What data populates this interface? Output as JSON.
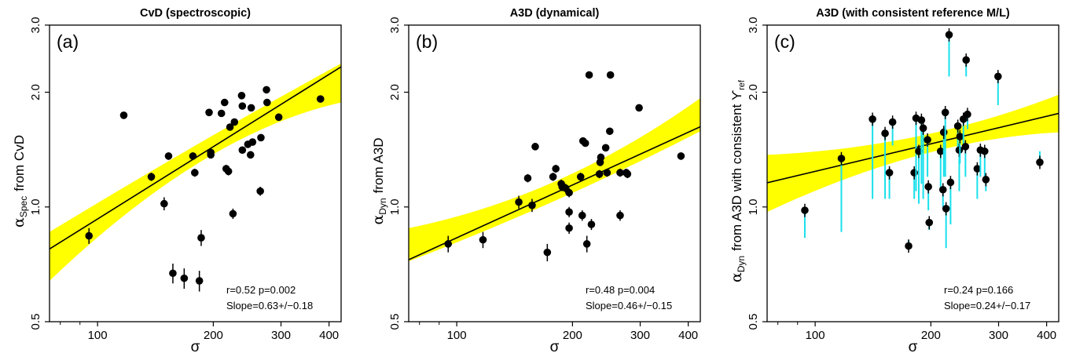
{
  "chart_data": [
    {
      "type": "scatter",
      "title": "CvD (spectroscopic)",
      "panel_label": "(a)",
      "xlabel": "σ",
      "ylabel_symbol": "α",
      "ylabel_sub": "Spec",
      "ylabel_suffix": "from CvD",
      "x_scale": "log",
      "y_scale": "log",
      "xlim": [
        75,
        430
      ],
      "ylim": [
        0.5,
        3.0
      ],
      "xticks": [
        100,
        200,
        300,
        400
      ],
      "yticks": [
        0.5,
        1.0,
        2.0,
        3.0
      ],
      "ytick_labels": [
        "0.5",
        "1.0",
        "2.0",
        "3.0"
      ],
      "fit": {
        "slope": 0.63,
        "at_x100": 0.93,
        "band_at_low": [
          0.64,
          0.86
        ],
        "band_at_high": [
          1.88,
          2.38
        ]
      },
      "annotation_line1": "r=0.52   p=0.002",
      "annotation_line2": "Slope=0.63+/−0.18",
      "points": [
        {
          "x": 95,
          "y": 0.84,
          "e": 0.04
        },
        {
          "x": 117,
          "y": 1.74,
          "e": 0.0
        },
        {
          "x": 138,
          "y": 1.2,
          "e": 0.03
        },
        {
          "x": 149,
          "y": 1.02,
          "e": 0.04
        },
        {
          "x": 153,
          "y": 1.36,
          "e": 0.03
        },
        {
          "x": 157,
          "y": 0.67,
          "e": 0.04
        },
        {
          "x": 168,
          "y": 0.65,
          "e": 0.04
        },
        {
          "x": 177,
          "y": 1.36,
          "e": 0.03
        },
        {
          "x": 179,
          "y": 1.23,
          "e": 0.03
        },
        {
          "x": 184,
          "y": 0.64,
          "e": 0.04
        },
        {
          "x": 186,
          "y": 0.83,
          "e": 0.04
        },
        {
          "x": 195,
          "y": 1.77,
          "e": 0.03
        },
        {
          "x": 197,
          "y": 1.37,
          "e": 0.03
        },
        {
          "x": 197,
          "y": 1.39,
          "e": 0.03
        },
        {
          "x": 210,
          "y": 1.76,
          "e": 0.03
        },
        {
          "x": 214,
          "y": 1.88,
          "e": 0.03
        },
        {
          "x": 216,
          "y": 1.26,
          "e": 0.03
        },
        {
          "x": 219,
          "y": 1.24,
          "e": 0.03
        },
        {
          "x": 221,
          "y": 1.62,
          "e": 0.03
        },
        {
          "x": 225,
          "y": 0.96,
          "e": 0.03
        },
        {
          "x": 227,
          "y": 1.67,
          "e": 0.03
        },
        {
          "x": 237,
          "y": 1.96,
          "e": 0.03
        },
        {
          "x": 238,
          "y": 1.84,
          "e": 0.03
        },
        {
          "x": 238,
          "y": 1.41,
          "e": 0.03
        },
        {
          "x": 246,
          "y": 1.46,
          "e": 0.03
        },
        {
          "x": 250,
          "y": 1.37,
          "e": 0.03
        },
        {
          "x": 251,
          "y": 1.82,
          "e": 0.03
        },
        {
          "x": 253,
          "y": 1.48,
          "e": 0.03
        },
        {
          "x": 265,
          "y": 1.1,
          "e": 0.03
        },
        {
          "x": 266,
          "y": 1.52,
          "e": 0.03
        },
        {
          "x": 275,
          "y": 2.03,
          "e": 0.03
        },
        {
          "x": 276,
          "y": 1.88,
          "e": 0.03
        },
        {
          "x": 296,
          "y": 1.72,
          "e": 0.03
        },
        {
          "x": 380,
          "y": 1.92,
          "e": 0.03
        }
      ]
    },
    {
      "type": "scatter",
      "title": "A3D (dynamical)",
      "panel_label": "(b)",
      "xlabel": "σ",
      "ylabel_symbol": "α",
      "ylabel_sub": "Dyn",
      "ylabel_suffix": "from A3D",
      "x_scale": "log",
      "y_scale": "log",
      "xlim": [
        75,
        430
      ],
      "ylim": [
        0.5,
        3.0
      ],
      "xticks": [
        100,
        200,
        300,
        400
      ],
      "yticks": [
        0.5,
        1.0,
        2.0,
        3.0
      ],
      "ytick_labels": [
        "0.5",
        "1.0",
        "2.0",
        "3.0"
      ],
      "fit": {
        "slope": 0.46,
        "at_x100": 0.83,
        "band_at_low": [
          0.72,
          0.88
        ],
        "band_at_high": [
          1.58,
          1.93
        ]
      },
      "annotation_line1": "r=0.48   p=0.004",
      "annotation_line2": "Slope=0.46+/−0.15",
      "points": [
        {
          "x": 95,
          "y": 0.8,
          "e": 0.04
        },
        {
          "x": 117,
          "y": 0.82,
          "e": 0.04
        },
        {
          "x": 145,
          "y": 1.03,
          "e": 0.04
        },
        {
          "x": 153,
          "y": 1.19,
          "e": 0.03
        },
        {
          "x": 157,
          "y": 1.01,
          "e": 0.04
        },
        {
          "x": 160,
          "y": 1.44,
          "e": 0.03
        },
        {
          "x": 172,
          "y": 0.76,
          "e": 0.04
        },
        {
          "x": 178,
          "y": 1.2,
          "e": 0.03
        },
        {
          "x": 181,
          "y": 1.26,
          "e": 0.03
        },
        {
          "x": 187,
          "y": 1.15,
          "e": 0.03
        },
        {
          "x": 188,
          "y": 1.13,
          "e": 0.03
        },
        {
          "x": 192,
          "y": 1.12,
          "e": 0.03
        },
        {
          "x": 196,
          "y": 1.09,
          "e": 0.03
        },
        {
          "x": 196,
          "y": 0.97,
          "e": 0.03
        },
        {
          "x": 196,
          "y": 0.88,
          "e": 0.03
        },
        {
          "x": 210,
          "y": 1.2,
          "e": 0.03
        },
        {
          "x": 212,
          "y": 0.95,
          "e": 0.03
        },
        {
          "x": 213,
          "y": 1.49,
          "e": 0.03
        },
        {
          "x": 216,
          "y": 1.47,
          "e": 0.03
        },
        {
          "x": 218,
          "y": 0.8,
          "e": 0.04
        },
        {
          "x": 221,
          "y": 2.22,
          "e": 0.0
        },
        {
          "x": 224,
          "y": 0.9,
          "e": 0.03
        },
        {
          "x": 235,
          "y": 1.22,
          "e": 0.03
        },
        {
          "x": 236,
          "y": 1.31,
          "e": 0.03
        },
        {
          "x": 237,
          "y": 1.35,
          "e": 0.03
        },
        {
          "x": 244,
          "y": 1.43,
          "e": 0.03
        },
        {
          "x": 246,
          "y": 1.23,
          "e": 0.03
        },
        {
          "x": 250,
          "y": 1.58,
          "e": 0.03
        },
        {
          "x": 251,
          "y": 2.22,
          "e": 0.0
        },
        {
          "x": 266,
          "y": 0.95,
          "e": 0.03
        },
        {
          "x": 266,
          "y": 1.23,
          "e": 0.03
        },
        {
          "x": 276,
          "y": 1.23,
          "e": 0.03
        },
        {
          "x": 278,
          "y": 1.22,
          "e": 0.03
        },
        {
          "x": 298,
          "y": 1.82,
          "e": 0.03
        },
        {
          "x": 383,
          "y": 1.36,
          "e": 0.03
        }
      ]
    },
    {
      "type": "scatter",
      "title": "A3D (with consistent reference M/L)",
      "panel_label": "(c)",
      "xlabel": "σ",
      "ylabel_symbol": "α",
      "ylabel_sub": "Dyn",
      "ylabel_suffix": "from A3D with consistent ϒ",
      "ylabel_suffix_sub": "ref",
      "x_scale": "log",
      "y_scale": "log",
      "xlim": [
        75,
        430
      ],
      "ylim": [
        0.5,
        3.0
      ],
      "xticks": [
        100,
        200,
        300,
        400
      ],
      "yticks": [
        0.5,
        1.0,
        2.0,
        3.0
      ],
      "ytick_labels": [
        "0.5",
        "1.0",
        "2.0",
        "3.0"
      ],
      "fit": {
        "slope": 0.24,
        "at_x100": 1.24,
        "band_at_low": [
          0.97,
          1.37
        ],
        "band_at_high": [
          1.57,
          1.97
        ]
      },
      "annotation_line1": "r=0.24   p=0.166",
      "annotation_line2": "Slope=0.24+/−0.17",
      "error_color": "#19e0ec",
      "points": [
        {
          "x": 94,
          "y": 0.98,
          "lo": 0.83,
          "hi": 1.0
        },
        {
          "x": 117,
          "y": 1.34,
          "lo": 0.86,
          "hi": 1.36
        },
        {
          "x": 141,
          "y": 1.7,
          "lo": 1.05,
          "hi": 1.72
        },
        {
          "x": 152,
          "y": 1.56,
          "lo": 1.05,
          "hi": 1.58
        },
        {
          "x": 156,
          "y": 1.23,
          "lo": 1.05,
          "hi": 1.25
        },
        {
          "x": 159,
          "y": 1.67,
          "lo": 1.45,
          "hi": 1.69
        },
        {
          "x": 175,
          "y": 0.79,
          "lo": 0.78,
          "hi": 0.82
        },
        {
          "x": 181,
          "y": 1.23,
          "lo": 1.05,
          "hi": 1.26
        },
        {
          "x": 183,
          "y": 1.71,
          "lo": 1.1,
          "hi": 1.73
        },
        {
          "x": 186,
          "y": 1.4,
          "lo": 1.02,
          "hi": 1.42
        },
        {
          "x": 189,
          "y": 1.69,
          "lo": 1.15,
          "hi": 1.71
        },
        {
          "x": 191,
          "y": 1.61,
          "lo": 1.05,
          "hi": 1.63
        },
        {
          "x": 196,
          "y": 1.5,
          "lo": 1.2,
          "hi": 1.52
        },
        {
          "x": 197,
          "y": 1.13,
          "lo": 0.98,
          "hi": 1.15
        },
        {
          "x": 198,
          "y": 0.91,
          "lo": 0.87,
          "hi": 0.93
        },
        {
          "x": 212,
          "y": 1.4,
          "lo": 1.1,
          "hi": 1.42
        },
        {
          "x": 215,
          "y": 1.11,
          "lo": 1.0,
          "hi": 1.13
        },
        {
          "x": 216,
          "y": 1.57,
          "lo": 1.2,
          "hi": 1.59
        },
        {
          "x": 218,
          "y": 1.77,
          "lo": 1.2,
          "hi": 1.79
        },
        {
          "x": 219,
          "y": 0.99,
          "lo": 0.78,
          "hi": 1.01
        },
        {
          "x": 223,
          "y": 2.83,
          "lo": 2.2,
          "hi": 2.85
        },
        {
          "x": 225,
          "y": 1.16,
          "lo": 0.9,
          "hi": 1.18
        },
        {
          "x": 235,
          "y": 1.63,
          "lo": 1.4,
          "hi": 1.65
        },
        {
          "x": 237,
          "y": 1.41,
          "lo": 1.1,
          "hi": 1.43
        },
        {
          "x": 238,
          "y": 1.53,
          "lo": 1.3,
          "hi": 1.55
        },
        {
          "x": 243,
          "y": 1.7,
          "lo": 1.45,
          "hi": 1.72
        },
        {
          "x": 246,
          "y": 1.44,
          "lo": 1.2,
          "hi": 1.46
        },
        {
          "x": 247,
          "y": 2.43,
          "lo": 2.2,
          "hi": 2.45
        },
        {
          "x": 249,
          "y": 1.75,
          "lo": 1.6,
          "hi": 1.77
        },
        {
          "x": 264,
          "y": 1.26,
          "lo": 1.05,
          "hi": 1.28
        },
        {
          "x": 269,
          "y": 1.41,
          "lo": 1.2,
          "hi": 1.43
        },
        {
          "x": 276,
          "y": 1.4,
          "lo": 1.2,
          "hi": 1.42
        },
        {
          "x": 278,
          "y": 1.18,
          "lo": 1.1,
          "hi": 1.2
        },
        {
          "x": 299,
          "y": 2.2,
          "lo": 1.85,
          "hi": 2.22
        },
        {
          "x": 384,
          "y": 1.31,
          "lo": 1.3,
          "hi": 1.4
        }
      ]
    }
  ],
  "colors": {
    "band": "#ffff00",
    "line": "#000000",
    "point": "#000000",
    "frame": "#000000"
  }
}
